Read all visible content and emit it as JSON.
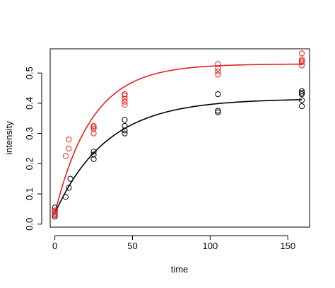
{
  "chart_data": {
    "type": "scatter",
    "title": "",
    "xlabel": "time",
    "ylabel": "intensity",
    "xlim": [
      -3,
      164
    ],
    "ylim": [
      -0.01,
      0.58
    ],
    "x_ticks": [
      0,
      50,
      100,
      150
    ],
    "y_ticks": [
      0.0,
      0.1,
      0.2,
      0.3,
      0.4,
      0.5
    ],
    "x_tick_labels": [
      "0",
      "50",
      "100",
      "150"
    ],
    "y_tick_labels": [
      "0.0",
      "0.1",
      "0.2",
      "0.3",
      "0.4",
      "0.5"
    ],
    "grid": false,
    "legend": "none",
    "series": [
      {
        "color": "#000000",
        "points": [
          [
            0,
            0.025
          ],
          [
            0,
            0.03
          ],
          [
            0,
            0.035
          ],
          [
            0,
            0.045
          ],
          [
            0,
            0.055
          ],
          [
            7,
            0.09
          ],
          [
            9,
            0.12
          ],
          [
            10,
            0.15
          ],
          [
            25,
            0.215
          ],
          [
            25,
            0.23
          ],
          [
            25,
            0.24
          ],
          [
            45,
            0.3
          ],
          [
            45,
            0.31
          ],
          [
            45,
            0.325
          ],
          [
            45,
            0.345
          ],
          [
            105,
            0.37
          ],
          [
            105,
            0.375
          ],
          [
            105,
            0.43
          ],
          [
            159,
            0.39
          ],
          [
            159,
            0.41
          ],
          [
            159,
            0.43
          ],
          [
            159,
            0.435
          ],
          [
            159,
            0.44
          ]
        ],
        "curve": {
          "model": "y = a - (a - b) * exp(-k * x)",
          "a": 0.415,
          "b": 0.035,
          "k": 0.03
        }
      },
      {
        "color": "#e8201e",
        "points": [
          [
            0,
            0.03
          ],
          [
            0,
            0.035
          ],
          [
            0,
            0.04
          ],
          [
            0,
            0.045
          ],
          [
            7,
            0.225
          ],
          [
            9,
            0.25
          ],
          [
            9,
            0.28
          ],
          [
            25,
            0.3
          ],
          [
            25,
            0.315
          ],
          [
            25,
            0.32
          ],
          [
            25,
            0.325
          ],
          [
            45,
            0.395
          ],
          [
            45,
            0.405
          ],
          [
            45,
            0.415
          ],
          [
            45,
            0.425
          ],
          [
            45,
            0.43
          ],
          [
            105,
            0.495
          ],
          [
            105,
            0.505
          ],
          [
            105,
            0.515
          ],
          [
            105,
            0.53
          ],
          [
            159,
            0.525
          ],
          [
            159,
            0.535
          ],
          [
            159,
            0.54
          ],
          [
            159,
            0.545
          ],
          [
            159,
            0.565
          ]
        ],
        "curve": {
          "model": "y = a - (a - b) * exp(-k * x)",
          "a": 0.53,
          "b": 0.035,
          "k": 0.042
        }
      }
    ]
  }
}
